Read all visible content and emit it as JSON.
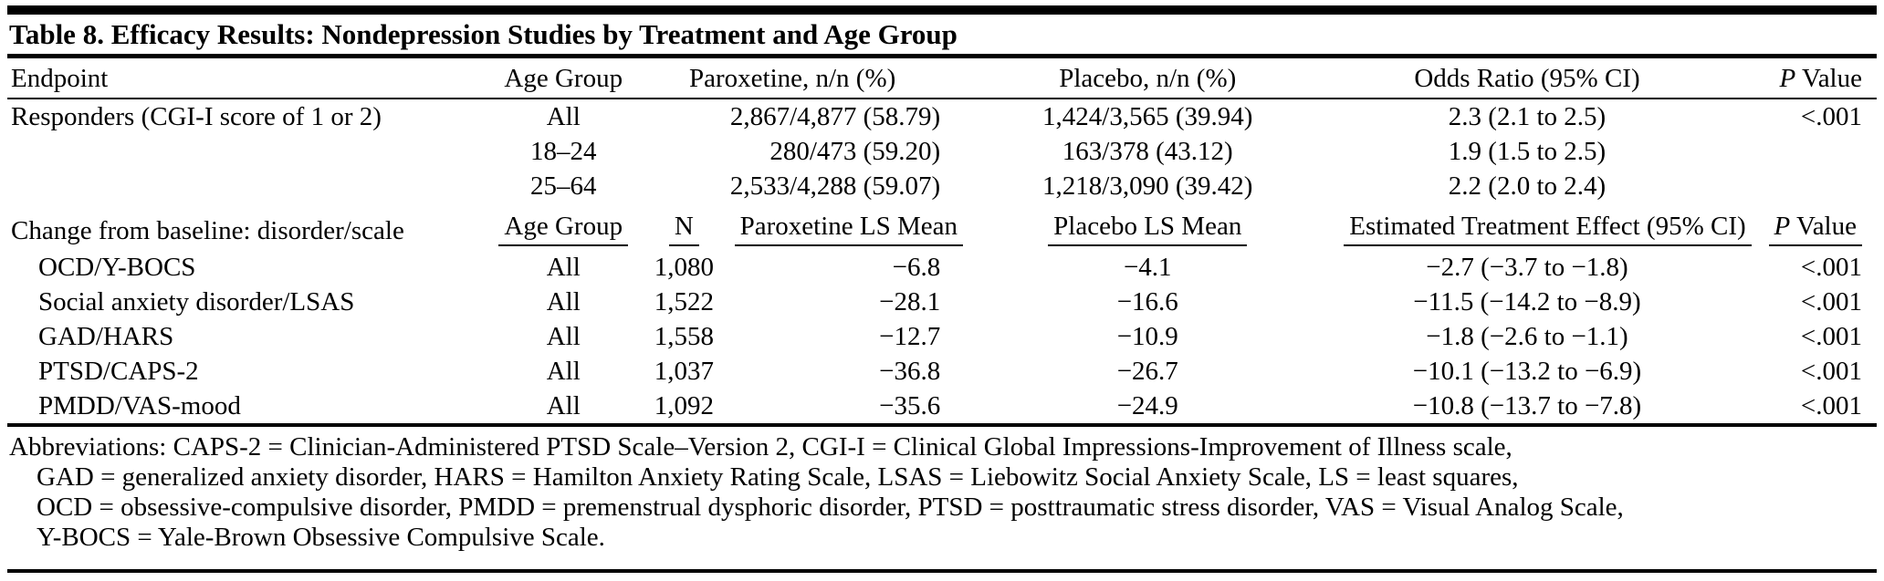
{
  "title": "Table 8. Efficacy Results: Nondepression Studies by Treatment and Age Group",
  "section1": {
    "headers": {
      "endpoint": "Endpoint",
      "age_group": "Age Group",
      "paroxetine": "Paroxetine, n/n (%)",
      "placebo": "Placebo, n/n (%)",
      "odds_ratio": "Odds Ratio (95% CI)",
      "p_italic": "P",
      "p_rest": " Value"
    },
    "rows": [
      {
        "endpoint": "Responders (CGI-I score of 1 or 2)",
        "age": "All",
        "paroxetine": "2,867/4,877 (58.79)",
        "placebo": "1,424/3,565 (39.94)",
        "odds": "2.3 (2.1 to 2.5)",
        "p": "<.001"
      },
      {
        "endpoint": "",
        "age": "18–24",
        "paroxetine": "280/473 (59.20)",
        "placebo": "163/378 (43.12)",
        "odds": "1.9 (1.5 to 2.5)",
        "p": ""
      },
      {
        "endpoint": "",
        "age": "25–64",
        "paroxetine": "2,533/4,288 (59.07)",
        "placebo": "1,218/3,090 (39.42)",
        "odds": "2.2 (2.0 to 2.4)",
        "p": ""
      }
    ]
  },
  "section2": {
    "headers": {
      "label": "Change from baseline: disorder/scale",
      "age_group": "Age Group",
      "n": "N",
      "paroxetine": "Paroxetine LS Mean",
      "placebo": "Placebo LS Mean",
      "effect": "Estimated Treatment Effect (95% CI)",
      "p_italic": "P",
      "p_rest": " Value"
    },
    "rows": [
      {
        "label": "OCD/Y-BOCS",
        "age": "All",
        "n": "1,080",
        "paroxetine": "−6.8",
        "placebo": "−4.1",
        "effect": "−2.7 (−3.7 to −1.8)",
        "p": "<.001"
      },
      {
        "label": "Social anxiety disorder/LSAS",
        "age": "All",
        "n": "1,522",
        "paroxetine": "−28.1",
        "placebo": "−16.6",
        "effect": "−11.5 (−14.2 to −8.9)",
        "p": "<.001"
      },
      {
        "label": "GAD/HARS",
        "age": "All",
        "n": "1,558",
        "paroxetine": "−12.7",
        "placebo": "−10.9",
        "effect": "−1.8 (−2.6 to −1.1)",
        "p": "<.001"
      },
      {
        "label": "PTSD/CAPS-2",
        "age": "All",
        "n": "1,037",
        "paroxetine": "−36.8",
        "placebo": "−26.7",
        "effect": "−10.1 (−13.2 to −6.9)",
        "p": "<.001"
      },
      {
        "label": "PMDD/VAS-mood",
        "age": "All",
        "n": "1,092",
        "paroxetine": "−35.6",
        "placebo": "−24.9",
        "effect": "−10.8 (−13.7 to −7.8)",
        "p": "<.001"
      }
    ]
  },
  "footnote": {
    "lines": [
      "Abbreviations: CAPS-2 = Clinician-Administered PTSD Scale–Version 2, CGI-I = Clinical Global Impressions-Improvement of Illness scale,",
      "GAD = generalized anxiety disorder, HARS = Hamilton Anxiety Rating Scale, LSAS = Liebowitz Social Anxiety Scale, LS = least squares,",
      "OCD = obsessive-compulsive disorder, PMDD = premenstrual dysphoric disorder, PTSD = posttraumatic stress disorder, VAS = Visual Analog Scale,",
      "Y-BOCS = Yale-Brown Obsessive Compulsive Scale."
    ]
  }
}
